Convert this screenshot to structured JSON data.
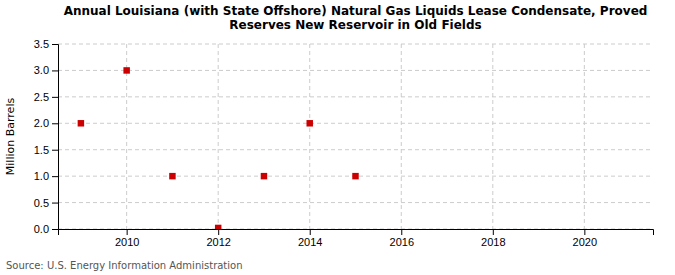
{
  "chart_data": {
    "type": "scatter",
    "title": "Annual Louisiana (with State Offshore) Natural Gas Liquids Lease Condensate, Proved\nReserves New Reservoir in Old Fields",
    "ylabel": "Million Barrels",
    "source": "Source: U.S. Energy Information Administration",
    "x": [
      2009,
      2010,
      2011,
      2012,
      2013,
      2014,
      2015
    ],
    "values": [
      2.0,
      3.0,
      1.0,
      0.02,
      1.0,
      2.0,
      1.0
    ],
    "color": "#cc0000",
    "marker": "square",
    "xlim": [
      2008.5,
      2021.5
    ],
    "ylim": [
      0.0,
      3.5
    ],
    "xticks": [
      2010,
      2012,
      2014,
      2016,
      2018,
      2020
    ],
    "yticks": [
      {
        "value": 0.0,
        "label": "0.0"
      },
      0.5,
      {
        "value": 1.0,
        "label": "1.0"
      },
      1.5,
      {
        "value": 2.0,
        "label": "2.0"
      },
      2.5,
      {
        "value": 3.0,
        "label": "3.0"
      },
      3.5
    ],
    "grid": true
  }
}
